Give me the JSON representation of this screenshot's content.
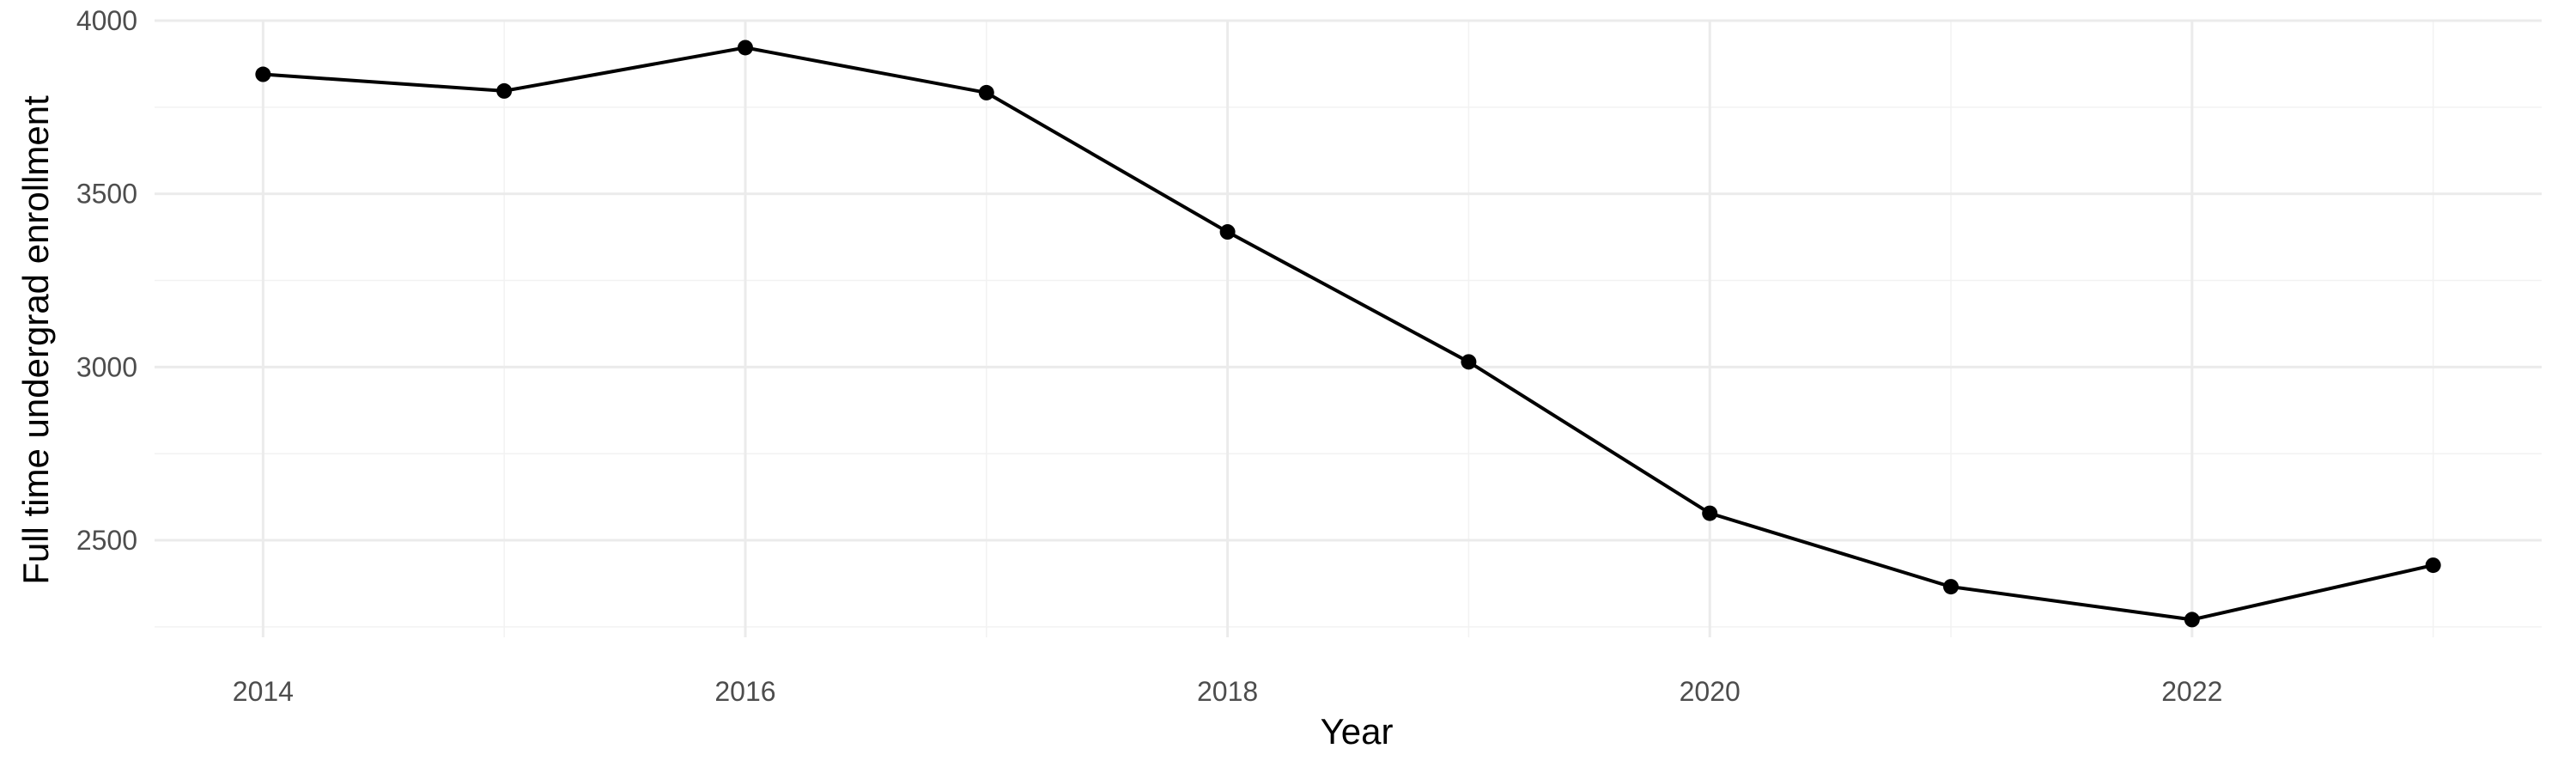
{
  "chart_data": {
    "type": "line",
    "title": "",
    "xlabel": "Year",
    "ylabel": "Full time undergrad enrollment",
    "x": [
      2014,
      2015,
      2016,
      2017,
      2018,
      2019,
      2020,
      2021,
      2022,
      2023
    ],
    "series": [
      {
        "values": [
          3845,
          3797,
          3922,
          3792,
          3390,
          3015,
          2578,
          2366,
          2271,
          2428
        ]
      }
    ],
    "xlim": [
      2013.55,
      2023.45
    ],
    "ylim": [
      2220,
      4000
    ],
    "x_ticks": [
      2014,
      2016,
      2018,
      2020,
      2022
    ],
    "x_tick_labels": [
      "2014",
      "2016",
      "2018",
      "2020",
      "2022"
    ],
    "y_ticks": [
      2500,
      3000,
      3500,
      4000
    ],
    "y_tick_labels": [
      "2500",
      "3000",
      "3500",
      "4000"
    ],
    "grid": true,
    "legend": "none",
    "colors": {
      "line": "#000000",
      "points": "#000000",
      "grid": "#ebebeb",
      "background": "#ffffff"
    }
  }
}
